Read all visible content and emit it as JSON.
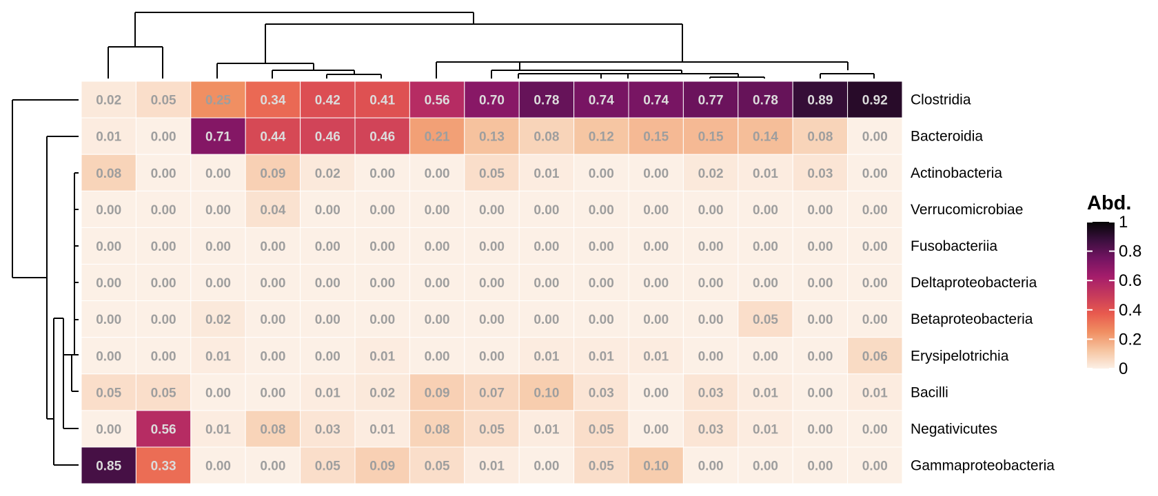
{
  "chart_data": {
    "type": "heatmap",
    "rows": [
      "Clostridia",
      "Bacteroidia",
      "Actinobacteria",
      "Verrucomicrobiae",
      "Fusobacteriia",
      "Deltaproteobacteria",
      "Betaproteobacteria",
      "Erysipelotrichia",
      "Bacilli",
      "Negativicutes",
      "Gammaproteobacteria"
    ],
    "values": [
      [
        0.02,
        0.05,
        0.25,
        0.34,
        0.42,
        0.41,
        0.56,
        0.7,
        0.78,
        0.74,
        0.74,
        0.77,
        0.78,
        0.89,
        0.92
      ],
      [
        0.01,
        0.0,
        0.71,
        0.44,
        0.46,
        0.46,
        0.21,
        0.13,
        0.08,
        0.12,
        0.15,
        0.15,
        0.14,
        0.08,
        0.0
      ],
      [
        0.08,
        0.0,
        0.0,
        0.09,
        0.02,
        0.0,
        0.0,
        0.05,
        0.01,
        0.0,
        0.0,
        0.02,
        0.01,
        0.03,
        0.0
      ],
      [
        0.0,
        0.0,
        0.0,
        0.04,
        0.0,
        0.0,
        0.0,
        0.0,
        0.0,
        0.0,
        0.0,
        0.0,
        0.0,
        0.0,
        0.0
      ],
      [
        0.0,
        0.0,
        0.0,
        0.0,
        0.0,
        0.0,
        0.0,
        0.0,
        0.0,
        0.0,
        0.0,
        0.0,
        0.0,
        0.0,
        0.0
      ],
      [
        0.0,
        0.0,
        0.0,
        0.0,
        0.0,
        0.0,
        0.0,
        0.0,
        0.0,
        0.0,
        0.0,
        0.0,
        0.0,
        0.0,
        0.0
      ],
      [
        0.0,
        0.0,
        0.02,
        0.0,
        0.0,
        0.0,
        0.0,
        0.0,
        0.0,
        0.0,
        0.0,
        0.0,
        0.05,
        0.0,
        0.0
      ],
      [
        0.0,
        0.0,
        0.01,
        0.0,
        0.0,
        0.01,
        0.0,
        0.0,
        0.01,
        0.01,
        0.01,
        0.0,
        0.0,
        0.0,
        0.06
      ],
      [
        0.05,
        0.05,
        0.0,
        0.0,
        0.01,
        0.02,
        0.09,
        0.07,
        0.1,
        0.03,
        0.0,
        0.03,
        0.01,
        0.0,
        0.01
      ],
      [
        0.0,
        0.56,
        0.01,
        0.08,
        0.03,
        0.01,
        0.08,
        0.05,
        0.01,
        0.05,
        0.0,
        0.03,
        0.01,
        0.0,
        0.0
      ],
      [
        0.85,
        0.33,
        0.0,
        0.0,
        0.05,
        0.09,
        0.05,
        0.01,
        0.0,
        0.05,
        0.1,
        0.0,
        0.0,
        0.0,
        0.0
      ]
    ],
    "legend": {
      "title": "Abd.",
      "ticks": [
        0,
        0.2,
        0.4,
        0.6,
        0.8,
        1
      ],
      "tick_labels": [
        "0",
        "0.2",
        "0.4",
        "0.6",
        "0.8",
        "1"
      ],
      "range": [
        0,
        1
      ]
    },
    "colors": {
      "scale": [
        "#fcf0e6",
        "#f6c4a0",
        "#f08f62",
        "#e85a4e",
        "#c63a5c",
        "#a51d6b",
        "#741462",
        "#3b0f3e",
        "#050505"
      ],
      "cell_text": "#9e9e9e",
      "cell_text_dark": "#dcdcdc",
      "cell_border": "#ffffff",
      "dendrogram": "#000000"
    },
    "dendrogram": {
      "rows": true,
      "columns": true
    }
  }
}
